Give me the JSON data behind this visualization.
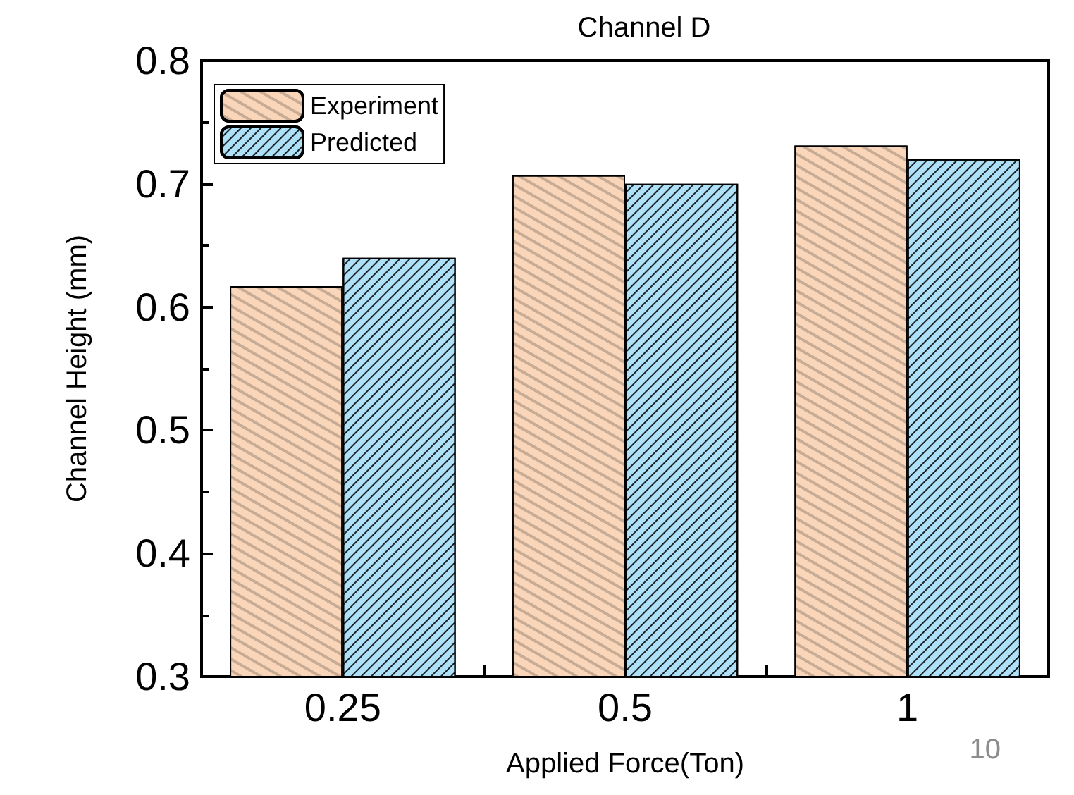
{
  "chart_data": {
    "type": "bar",
    "title": "Channel D",
    "xlabel": "Applied Force(Ton)",
    "ylabel": "Channel Height (mm)",
    "categories": [
      "0.25",
      "0.5",
      "1"
    ],
    "series": [
      {
        "name": "Experiment",
        "color": "#f9d6b9",
        "values": [
          0.617,
          0.707,
          0.731
        ]
      },
      {
        "name": "Predicted",
        "color": "#aee0f7",
        "values": [
          0.64,
          0.7,
          0.72
        ]
      }
    ],
    "ylim": [
      0.3,
      0.8
    ],
    "yticks": [
      0.3,
      0.4,
      0.5,
      0.6,
      0.7,
      0.8
    ],
    "grid": false,
    "legend": "top left",
    "annotations": [
      "10"
    ]
  }
}
